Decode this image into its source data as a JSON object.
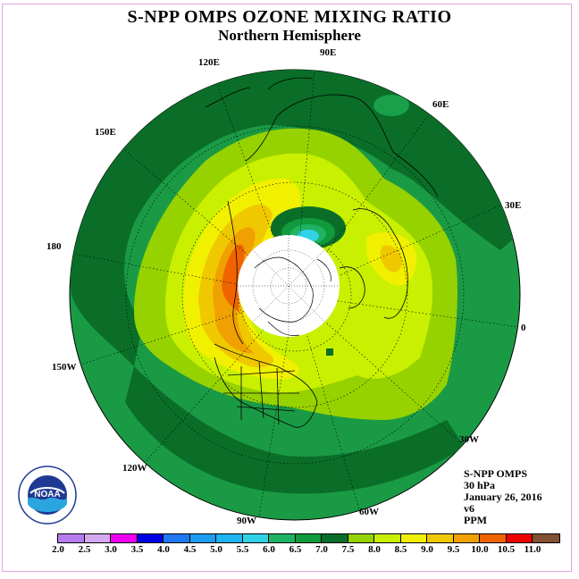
{
  "header": {
    "title": "S-NPP OMPS OZONE MIXING RATIO",
    "subtitle": "Northern Hemisphere"
  },
  "longitude_labels": [
    "90E",
    "60E",
    "30E",
    "0",
    "30W",
    "60W",
    "90W",
    "120W",
    "150W",
    "180",
    "150E",
    "120E"
  ],
  "info": {
    "instrument": "S-NPP OMPS",
    "level": "30 hPa",
    "date": "January 26, 2016",
    "version": "v6",
    "units": "PPM"
  },
  "logo": {
    "text": "NOAA",
    "icon": "noaa-logo-icon"
  },
  "colorbar": {
    "ticks": [
      "2.0",
      "2.5",
      "3.0",
      "3.5",
      "4.0",
      "4.5",
      "5.0",
      "5.5",
      "6.0",
      "6.5",
      "7.0",
      "7.5",
      "8.0",
      "8.5",
      "9.0",
      "9.5",
      "10.0",
      "10.5",
      "11.0"
    ],
    "colors": [
      "#b57cf0",
      "#d6a8f0",
      "#f000f0",
      "#0000e6",
      "#1e78f0",
      "#1e9cf0",
      "#1eb4f0",
      "#32d2e6",
      "#1eb464",
      "#109a3c",
      "#0a6e28",
      "#96d200",
      "#c8f000",
      "#f0f000",
      "#f0c800",
      "#f0a000",
      "#f06400",
      "#f00000",
      "#825032"
    ]
  }
}
